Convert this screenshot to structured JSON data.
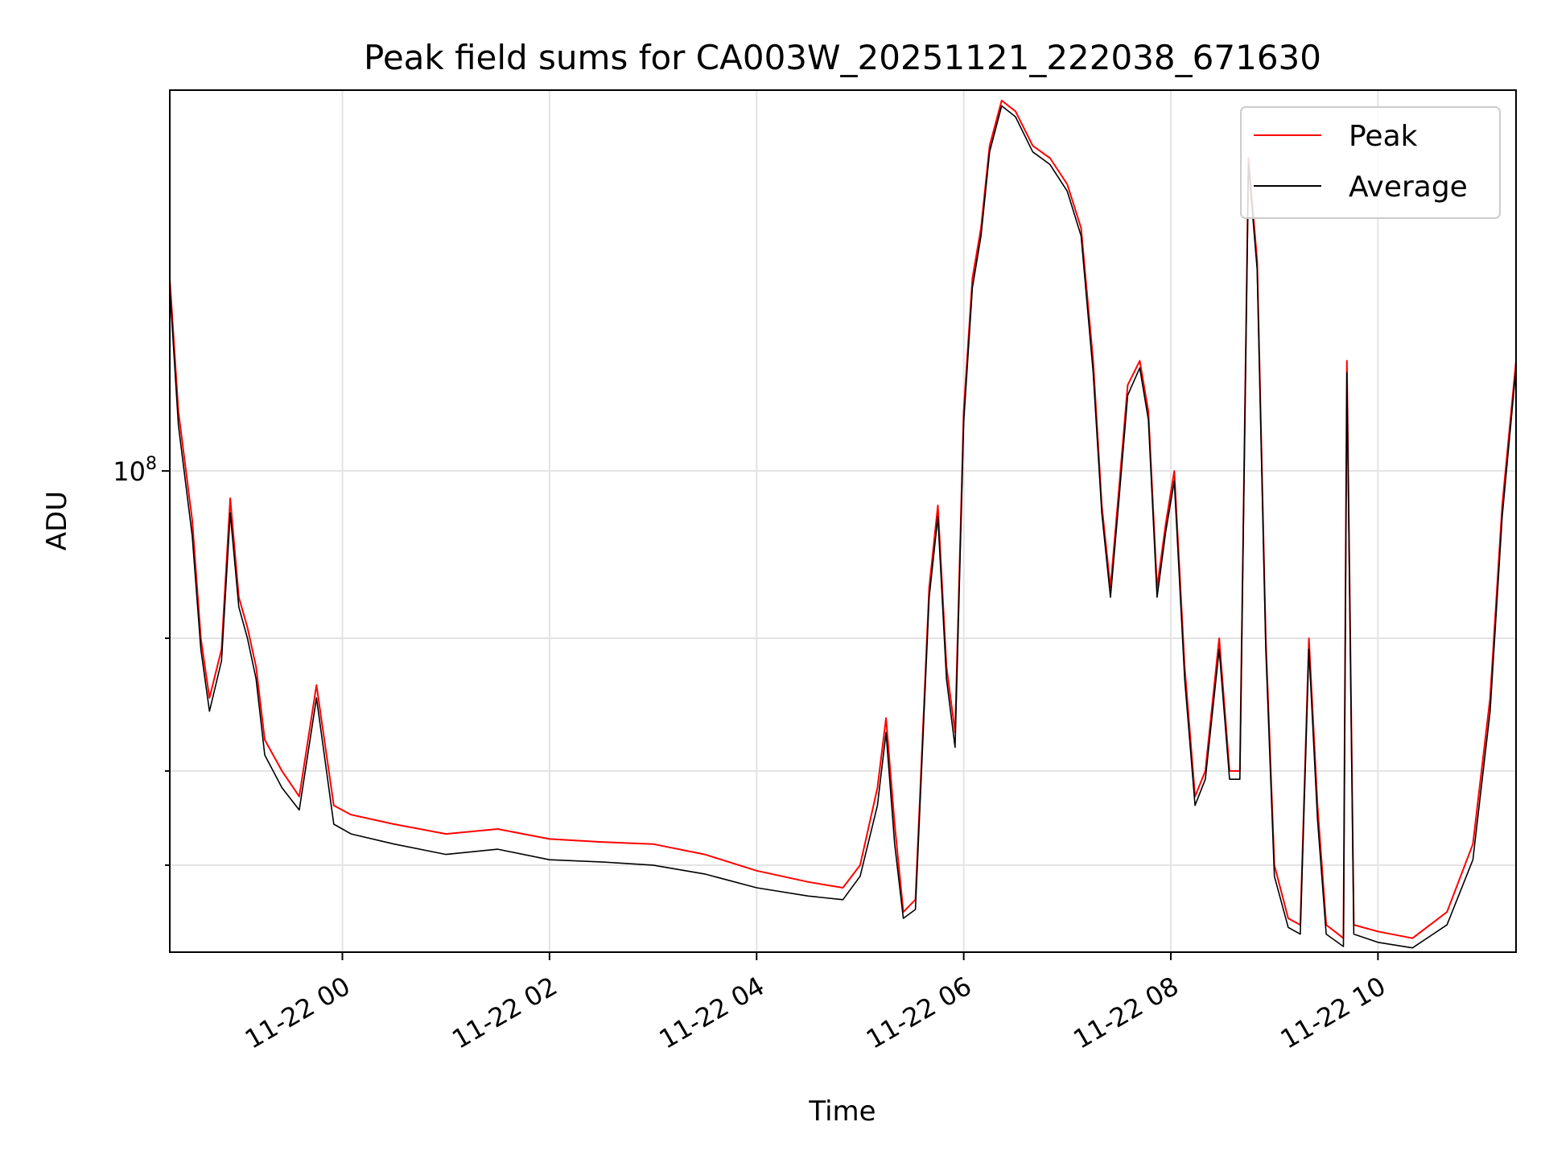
{
  "chart_data": {
    "type": "line",
    "title": "Peak field sums for CA003W_20251121_222038_671630",
    "xlabel": "Time",
    "ylabel": "ADU",
    "y_scale": "log",
    "ylim": [
      23000000,
      320000000
    ],
    "y_major_ticks": [
      {
        "value": 100000000,
        "base": "10",
        "exp": "8"
      }
    ],
    "y_minor_ticks": [
      30000000,
      40000000,
      60000000
    ],
    "xlim": [
      "2025-11-21 22:20",
      "2025-11-22 11:20"
    ],
    "x_ticks": [
      {
        "value": "2025-11-22 00:00",
        "label": "11-22 00"
      },
      {
        "value": "2025-11-22 02:00",
        "label": "11-22 02"
      },
      {
        "value": "2025-11-22 04:00",
        "label": "11-22 04"
      },
      {
        "value": "2025-11-22 06:00",
        "label": "11-22 06"
      },
      {
        "value": "2025-11-22 08:00",
        "label": "11-22 08"
      },
      {
        "value": "2025-11-22 10:00",
        "label": "11-22 10"
      }
    ],
    "grid": true,
    "legend_position": "top-right",
    "series": [
      {
        "name": "Peak",
        "color": "#ff0000",
        "points": [
          [
            "2025-11-21 22:20",
            180000000
          ],
          [
            "2025-11-21 22:25",
            120000000
          ],
          [
            "2025-11-21 22:33",
            86000000
          ],
          [
            "2025-11-21 22:38",
            60000000
          ],
          [
            "2025-11-21 22:43",
            50000000
          ],
          [
            "2025-11-21 22:50",
            58000000
          ],
          [
            "2025-11-21 22:55",
            92000000
          ],
          [
            "2025-11-21 23:00",
            68000000
          ],
          [
            "2025-11-21 23:05",
            62000000
          ],
          [
            "2025-11-21 23:10",
            55000000
          ],
          [
            "2025-11-21 23:15",
            44000000
          ],
          [
            "2025-11-21 23:25",
            40000000
          ],
          [
            "2025-11-21 23:35",
            37000000
          ],
          [
            "2025-11-21 23:45",
            52000000
          ],
          [
            "2025-11-21 23:55",
            36000000
          ],
          [
            "2025-11-22 00:05",
            35000000
          ],
          [
            "2025-11-22 00:30",
            34000000
          ],
          [
            "2025-11-22 01:00",
            33000000
          ],
          [
            "2025-11-22 01:30",
            33500000
          ],
          [
            "2025-11-22 02:00",
            32500000
          ],
          [
            "2025-11-22 02:30",
            32200000
          ],
          [
            "2025-11-22 03:00",
            32000000
          ],
          [
            "2025-11-22 03:30",
            31000000
          ],
          [
            "2025-11-22 04:00",
            29500000
          ],
          [
            "2025-11-22 04:30",
            28500000
          ],
          [
            "2025-11-22 04:50",
            28000000
          ],
          [
            "2025-11-22 05:00",
            30000000
          ],
          [
            "2025-11-22 05:10",
            38000000
          ],
          [
            "2025-11-22 05:15",
            47000000
          ],
          [
            "2025-11-22 05:20",
            34000000
          ],
          [
            "2025-11-22 05:25",
            26000000
          ],
          [
            "2025-11-22 05:32",
            27000000
          ],
          [
            "2025-11-22 05:40",
            70000000
          ],
          [
            "2025-11-22 05:45",
            90000000
          ],
          [
            "2025-11-22 05:50",
            55000000
          ],
          [
            "2025-11-22 05:55",
            45000000
          ],
          [
            "2025-11-22 06:00",
            120000000
          ],
          [
            "2025-11-22 06:05",
            180000000
          ],
          [
            "2025-11-22 06:10",
            210000000
          ],
          [
            "2025-11-22 06:15",
            270000000
          ],
          [
            "2025-11-22 06:22",
            310000000
          ],
          [
            "2025-11-22 06:30",
            300000000
          ],
          [
            "2025-11-22 06:40",
            270000000
          ],
          [
            "2025-11-22 06:50",
            260000000
          ],
          [
            "2025-11-22 07:00",
            240000000
          ],
          [
            "2025-11-22 07:08",
            210000000
          ],
          [
            "2025-11-22 07:15",
            140000000
          ],
          [
            "2025-11-22 07:20",
            90000000
          ],
          [
            "2025-11-22 07:25",
            70000000
          ],
          [
            "2025-11-22 07:30",
            95000000
          ],
          [
            "2025-11-22 07:35",
            130000000
          ],
          [
            "2025-11-22 07:42",
            140000000
          ],
          [
            "2025-11-22 07:47",
            120000000
          ],
          [
            "2025-11-22 07:52",
            70000000
          ],
          [
            "2025-11-22 07:57",
            85000000
          ],
          [
            "2025-11-22 08:02",
            100000000
          ],
          [
            "2025-11-22 08:08",
            55000000
          ],
          [
            "2025-11-22 08:14",
            37000000
          ],
          [
            "2025-11-22 08:20",
            40000000
          ],
          [
            "2025-11-22 08:28",
            60000000
          ],
          [
            "2025-11-22 08:34",
            40000000
          ],
          [
            "2025-11-22 08:40",
            40000000
          ],
          [
            "2025-11-22 08:45",
            260000000
          ],
          [
            "2025-11-22 08:50",
            190000000
          ],
          [
            "2025-11-22 08:55",
            60000000
          ],
          [
            "2025-11-22 09:00",
            30000000
          ],
          [
            "2025-11-22 09:08",
            25500000
          ],
          [
            "2025-11-22 09:15",
            25000000
          ],
          [
            "2025-11-22 09:20",
            60000000
          ],
          [
            "2025-11-22 09:25",
            36000000
          ],
          [
            "2025-11-22 09:30",
            25000000
          ],
          [
            "2025-11-22 09:40",
            24000000
          ],
          [
            "2025-11-22 09:42",
            140000000
          ],
          [
            "2025-11-22 09:46",
            25000000
          ],
          [
            "2025-11-22 10:00",
            24500000
          ],
          [
            "2025-11-22 10:20",
            24000000
          ],
          [
            "2025-11-22 10:40",
            26000000
          ],
          [
            "2025-11-22 10:55",
            32000000
          ],
          [
            "2025-11-22 11:05",
            50000000
          ],
          [
            "2025-11-22 11:12",
            90000000
          ],
          [
            "2025-11-22 11:20",
            140000000
          ]
        ]
      },
      {
        "name": "Average",
        "color": "#000000",
        "points": [
          [
            "2025-11-21 22:20",
            175000000
          ],
          [
            "2025-11-21 22:25",
            115000000
          ],
          [
            "2025-11-21 22:33",
            82000000
          ],
          [
            "2025-11-21 22:38",
            58000000
          ],
          [
            "2025-11-21 22:43",
            48000000
          ],
          [
            "2025-11-21 22:50",
            56000000
          ],
          [
            "2025-11-21 22:55",
            88000000
          ],
          [
            "2025-11-21 23:00",
            66000000
          ],
          [
            "2025-11-21 23:05",
            60000000
          ],
          [
            "2025-11-21 23:10",
            53000000
          ],
          [
            "2025-11-21 23:15",
            42000000
          ],
          [
            "2025-11-21 23:25",
            38000000
          ],
          [
            "2025-11-21 23:35",
            35500000
          ],
          [
            "2025-11-21 23:45",
            50000000
          ],
          [
            "2025-11-21 23:55",
            34000000
          ],
          [
            "2025-11-22 00:05",
            33000000
          ],
          [
            "2025-11-22 00:30",
            32000000
          ],
          [
            "2025-11-22 01:00",
            31000000
          ],
          [
            "2025-11-22 01:30",
            31500000
          ],
          [
            "2025-11-22 02:00",
            30500000
          ],
          [
            "2025-11-22 02:30",
            30300000
          ],
          [
            "2025-11-22 03:00",
            30000000
          ],
          [
            "2025-11-22 03:30",
            29200000
          ],
          [
            "2025-11-22 04:00",
            28000000
          ],
          [
            "2025-11-22 04:30",
            27300000
          ],
          [
            "2025-11-22 04:50",
            27000000
          ],
          [
            "2025-11-22 05:00",
            29000000
          ],
          [
            "2025-11-22 05:10",
            36000000
          ],
          [
            "2025-11-22 05:15",
            45000000
          ],
          [
            "2025-11-22 05:20",
            32000000
          ],
          [
            "2025-11-22 05:25",
            25500000
          ],
          [
            "2025-11-22 05:32",
            26200000
          ],
          [
            "2025-11-22 05:40",
            68000000
          ],
          [
            "2025-11-22 05:45",
            87000000
          ],
          [
            "2025-11-22 05:50",
            53000000
          ],
          [
            "2025-11-22 05:55",
            43000000
          ],
          [
            "2025-11-22 06:00",
            116000000
          ],
          [
            "2025-11-22 06:05",
            175000000
          ],
          [
            "2025-11-22 06:10",
            205000000
          ],
          [
            "2025-11-22 06:15",
            265000000
          ],
          [
            "2025-11-22 06:22",
            305000000
          ],
          [
            "2025-11-22 06:30",
            295000000
          ],
          [
            "2025-11-22 06:40",
            265000000
          ],
          [
            "2025-11-22 06:50",
            255000000
          ],
          [
            "2025-11-22 07:00",
            235000000
          ],
          [
            "2025-11-22 07:08",
            205000000
          ],
          [
            "2025-11-22 07:15",
            135000000
          ],
          [
            "2025-11-22 07:20",
            88000000
          ],
          [
            "2025-11-22 07:25",
            68000000
          ],
          [
            "2025-11-22 07:30",
            92000000
          ],
          [
            "2025-11-22 07:35",
            126000000
          ],
          [
            "2025-11-22 07:42",
            137000000
          ],
          [
            "2025-11-22 07:47",
            117000000
          ],
          [
            "2025-11-22 07:52",
            68000000
          ],
          [
            "2025-11-22 07:57",
            83000000
          ],
          [
            "2025-11-22 08:02",
            97000000
          ],
          [
            "2025-11-22 08:08",
            53000000
          ],
          [
            "2025-11-22 08:14",
            36000000
          ],
          [
            "2025-11-22 08:20",
            39000000
          ],
          [
            "2025-11-22 08:28",
            58000000
          ],
          [
            "2025-11-22 08:34",
            39000000
          ],
          [
            "2025-11-22 08:40",
            39000000
          ],
          [
            "2025-11-22 08:45",
            255000000
          ],
          [
            "2025-11-22 08:50",
            185000000
          ],
          [
            "2025-11-22 08:55",
            58000000
          ],
          [
            "2025-11-22 09:00",
            29000000
          ],
          [
            "2025-11-22 09:08",
            24800000
          ],
          [
            "2025-11-22 09:15",
            24300000
          ],
          [
            "2025-11-22 09:20",
            58000000
          ],
          [
            "2025-11-22 09:25",
            34500000
          ],
          [
            "2025-11-22 09:30",
            24300000
          ],
          [
            "2025-11-22 09:40",
            23400000
          ],
          [
            "2025-11-22 09:42",
            135000000
          ],
          [
            "2025-11-22 09:46",
            24300000
          ],
          [
            "2025-11-22 10:00",
            23700000
          ],
          [
            "2025-11-22 10:20",
            23300000
          ],
          [
            "2025-11-22 10:40",
            25000000
          ],
          [
            "2025-11-22 10:55",
            30500000
          ],
          [
            "2025-11-22 11:05",
            48000000
          ],
          [
            "2025-11-22 11:12",
            87000000
          ],
          [
            "2025-11-22 11:20",
            137000000
          ]
        ]
      }
    ]
  }
}
